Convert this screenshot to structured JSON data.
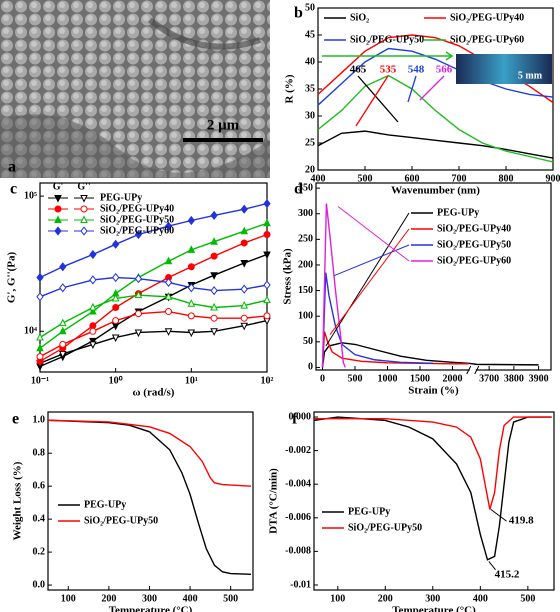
{
  "chart_data": [
    {
      "type": "image",
      "panel_label": "a",
      "scale_bar": "2 μm"
    },
    {
      "type": "line",
      "panel_label": "b",
      "x_label": "Wavenumber (nm)",
      "y_label": "R (%)",
      "x": [
        400,
        450,
        500,
        550,
        600,
        650,
        700,
        750,
        800,
        850,
        900
      ],
      "xlim": [
        400,
        900
      ],
      "xticks": [
        400,
        500,
        600,
        700,
        800,
        900
      ],
      "ylim": [
        20,
        50
      ],
      "yticks": [
        20,
        25,
        30,
        35,
        40,
        45,
        50
      ],
      "series": [
        {
          "name": "SiO₂",
          "color": "#000000",
          "values": [
            24.5,
            26.8,
            27.2,
            26.5,
            26,
            25.5,
            25,
            24.5,
            23.8,
            23,
            22.2
          ]
        },
        {
          "name": "SiO₂/PEG-UPy40",
          "color": "#ff0000",
          "values": [
            34,
            38,
            42,
            44.5,
            45,
            44.5,
            43,
            40.5,
            38,
            35.5,
            32.5
          ]
        },
        {
          "name": "SiO₂/PEG-UPy50",
          "color": "#1f3fdd",
          "values": [
            32,
            36,
            40,
            42.5,
            42,
            40.5,
            38.5,
            36.5,
            35,
            34,
            33.5
          ]
        },
        {
          "name": "SiO₂/PEG-UPy60",
          "color": "#22bb22",
          "values": [
            27.5,
            31,
            35.5,
            37.5,
            35,
            31,
            27.5,
            25,
            23.5,
            22.5,
            21.5
          ]
        }
      ],
      "peak_labels": [
        "465",
        "535",
        "548",
        "566"
      ],
      "inset_scale": "5 mm"
    },
    {
      "type": "log-line",
      "panel_label": "c",
      "x_label": "ω (rad/s)",
      "y_label": "G', G''(Pa)",
      "log_x": true,
      "log_y": true,
      "legend_headers": [
        "G'",
        "G''"
      ],
      "x": [
        0.1,
        0.2,
        0.5,
        1,
        2,
        5,
        10,
        20,
        50,
        100
      ],
      "xlim": [
        0.1,
        100
      ],
      "xticks": [
        {
          "value": 0.1,
          "label": "10⁻¹"
        },
        {
          "value": 1,
          "label": "10⁰"
        },
        {
          "value": 10,
          "label": "10¹"
        },
        {
          "value": 100,
          "label": "10²"
        }
      ],
      "ylim": [
        5000,
        125000
      ],
      "yticks": [
        {
          "value": 10000,
          "label": "10⁴"
        },
        {
          "value": 100000,
          "label": "10⁵"
        }
      ],
      "series": [
        {
          "name": "PEG-UPy",
          "color": "#000000",
          "marker": "triangle-down",
          "values": [
            5500,
            6500,
            8500,
            11000,
            14000,
            18000,
            22000,
            26000,
            32000,
            37000
          ],
          "loss_values": [
            5800,
            6800,
            8000,
            9000,
            9800,
            10000,
            9800,
            10000,
            11000,
            12000
          ]
        },
        {
          "name": "SiO₂/PEG-UPy40",
          "color": "#ff0000",
          "marker": "circle",
          "values": [
            6000,
            7500,
            11000,
            15000,
            19000,
            25000,
            30000,
            36000,
            45000,
            52000
          ],
          "loss_values": [
            6500,
            8000,
            10000,
            12000,
            13500,
            14000,
            13000,
            12500,
            12500,
            13000
          ]
        },
        {
          "name": "SiO₂/PEG-UPy50",
          "color": "#00bb00",
          "marker": "triangle-up",
          "values": [
            7500,
            10000,
            14000,
            19000,
            25000,
            33000,
            40000,
            46000,
            55000,
            63000
          ],
          "loss_values": [
            9000,
            11500,
            15000,
            17500,
            18500,
            18000,
            16000,
            15000,
            15500,
            17000
          ]
        },
        {
          "name": "SiO₂/PEG-UPy60",
          "color": "#2233dd",
          "marker": "diamond",
          "values": [
            25000,
            30000,
            37000,
            44000,
            52000,
            60000,
            66000,
            72000,
            80000,
            88000
          ],
          "loss_values": [
            18000,
            21000,
            24000,
            25000,
            24500,
            23000,
            21000,
            20000,
            20500,
            22000
          ]
        }
      ]
    },
    {
      "type": "line",
      "panel_label": "d",
      "x_label": "Strain (%)",
      "y_label": "Stress (kPa)",
      "xlim": [
        -100,
        3950
      ],
      "x_break": [
        2250,
        3650
      ],
      "xticks": [
        0,
        500,
        1000,
        1500,
        2000,
        3700,
        3800,
        3900
      ],
      "ylim": [
        -5,
        360
      ],
      "yticks": [
        0,
        50,
        100,
        150,
        200,
        250,
        300,
        350
      ],
      "series": [
        {
          "name": "PEG-UPy",
          "color": "#000000",
          "x": [
            0,
            30,
            100,
            300,
            500,
            800,
            1200,
            1600,
            2000,
            2250,
            3650,
            3900
          ],
          "values": [
            0,
            30,
            42,
            48,
            45,
            35,
            22,
            14,
            10,
            8,
            6,
            5
          ]
        },
        {
          "name": "SiO₂/PEG-UPy40",
          "color": "#ff0000",
          "x": [
            0,
            30,
            80,
            150,
            300,
            600,
            1000,
            1500,
            2000,
            2250
          ],
          "values": [
            0,
            70,
            50,
            30,
            18,
            12,
            9,
            8,
            7,
            7
          ]
        },
        {
          "name": "SiO₂/PEG-UPy50",
          "color": "#2233dd",
          "x": [
            0,
            50,
            100,
            200,
            300,
            500,
            800,
            1200,
            1700
          ],
          "values": [
            0,
            185,
            140,
            80,
            45,
            25,
            15,
            10,
            8
          ]
        },
        {
          "name": "SiO₂/PEG-UPy60",
          "color": "#dd22dd",
          "x": [
            0,
            60,
            120,
            200,
            280,
            320,
            350
          ],
          "values": [
            0,
            320,
            250,
            150,
            60,
            10,
            0
          ]
        }
      ]
    },
    {
      "type": "line",
      "panel_label": "e",
      "x_label": "Temperature (°C)",
      "y_label": "Weight Loss (%)",
      "xlim": [
        50,
        555
      ],
      "xticks": [
        100,
        200,
        300,
        400,
        500
      ],
      "ylim": [
        -0.03,
        1.05
      ],
      "yticks": [
        {
          "value": 0,
          "label": "0.0"
        },
        0.2,
        0.4,
        0.6,
        0.8,
        {
          "value": 1,
          "label": "1.0"
        }
      ],
      "series": [
        {
          "name": "PEG-UPy",
          "color": "#000000",
          "x": [
            50,
            100,
            200,
            250,
            300,
            350,
            380,
            400,
            420,
            440,
            460,
            480,
            500,
            550
          ],
          "values": [
            1.0,
            0.995,
            0.985,
            0.97,
            0.93,
            0.82,
            0.68,
            0.55,
            0.38,
            0.22,
            0.12,
            0.08,
            0.07,
            0.065
          ]
        },
        {
          "name": "SiO₂/PEG-UPy50",
          "color": "#ff0000",
          "x": [
            50,
            200,
            300,
            350,
            400,
            430,
            450,
            460,
            480,
            550
          ],
          "values": [
            1.0,
            0.99,
            0.96,
            0.92,
            0.84,
            0.75,
            0.65,
            0.62,
            0.61,
            0.6
          ]
        }
      ]
    },
    {
      "type": "line",
      "panel_label": "f",
      "x_label": "Temperature (°C)",
      "y_label": "DTA (°C/min)",
      "xlim": [
        50,
        555
      ],
      "xticks": [
        100,
        200,
        300,
        400,
        500
      ],
      "ylim": [
        -0.0103,
        0.0003
      ],
      "yticks": [
        {
          "value": 0,
          "label": "0.000"
        },
        -0.002,
        -0.004,
        -0.006,
        -0.008,
        -0.01
      ],
      "series": [
        {
          "name": "PEG-UPy",
          "color": "#000000",
          "x": [
            50,
            100,
            150,
            200,
            250,
            300,
            350,
            380,
            400,
            415,
            430,
            440,
            450,
            460,
            470,
            500,
            550
          ],
          "values": [
            -0.0002,
            0,
            -0.0001,
            -0.0002,
            -0.0006,
            -0.0013,
            -0.0028,
            -0.0045,
            -0.007,
            -0.0085,
            -0.0083,
            -0.0065,
            -0.004,
            -0.0015,
            -0.0003,
            0,
            0
          ]
        },
        {
          "name": "SiO₂/PEG-UPy50",
          "color": "#ff0000",
          "x": [
            50,
            200,
            300,
            350,
            380,
            400,
            410,
            420,
            430,
            440,
            450,
            470,
            550
          ],
          "values": [
            -0.0001,
            -0.0001,
            -0.0003,
            -0.0006,
            -0.0012,
            -0.0025,
            -0.004,
            -0.0055,
            -0.0045,
            -0.002,
            -0.0005,
            0,
            0
          ]
        }
      ],
      "annotations": [
        "419.8",
        "415.2"
      ]
    }
  ]
}
